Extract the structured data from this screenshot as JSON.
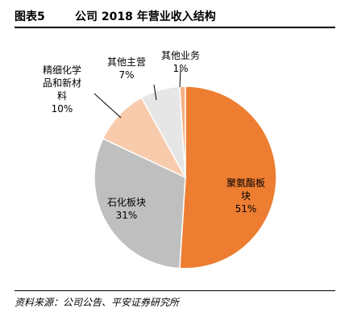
{
  "figure": {
    "number": "图表5",
    "title": "公司 2018 年营业收入结构",
    "source": "资料来源：公司公告、平安证券研究所"
  },
  "chart_data": {
    "type": "pie",
    "title": "公司 2018 年营业收入结构",
    "slices": [
      {
        "name": "聚氨酯板块",
        "value": 51,
        "label": "51%",
        "color": "#ED7D31"
      },
      {
        "name": "石化板块",
        "value": 31,
        "label": "31%",
        "color": "#BFBFBF"
      },
      {
        "name": "精细化学品和新材料",
        "value": 10,
        "label": "10%",
        "color": "#F8CBAD"
      },
      {
        "name": "其他主营",
        "value": 7,
        "label": "7%",
        "color": "#E7E6E6"
      },
      {
        "name": "其他业务",
        "value": 1,
        "label": "1%",
        "color": "#F4B183"
      }
    ],
    "label_lines": {
      "聚氨酯板块": [
        "聚氨酯板",
        "块"
      ],
      "石化板块": [
        "石化板块"
      ],
      "精细化学品和新材料": [
        "精细化学",
        "品和新材",
        "料"
      ],
      "其他主营": [
        "其他主营"
      ],
      "其他业务": [
        "其他业务"
      ]
    },
    "start_angle_deg": 0,
    "direction": "clockwise",
    "legend": "none"
  }
}
